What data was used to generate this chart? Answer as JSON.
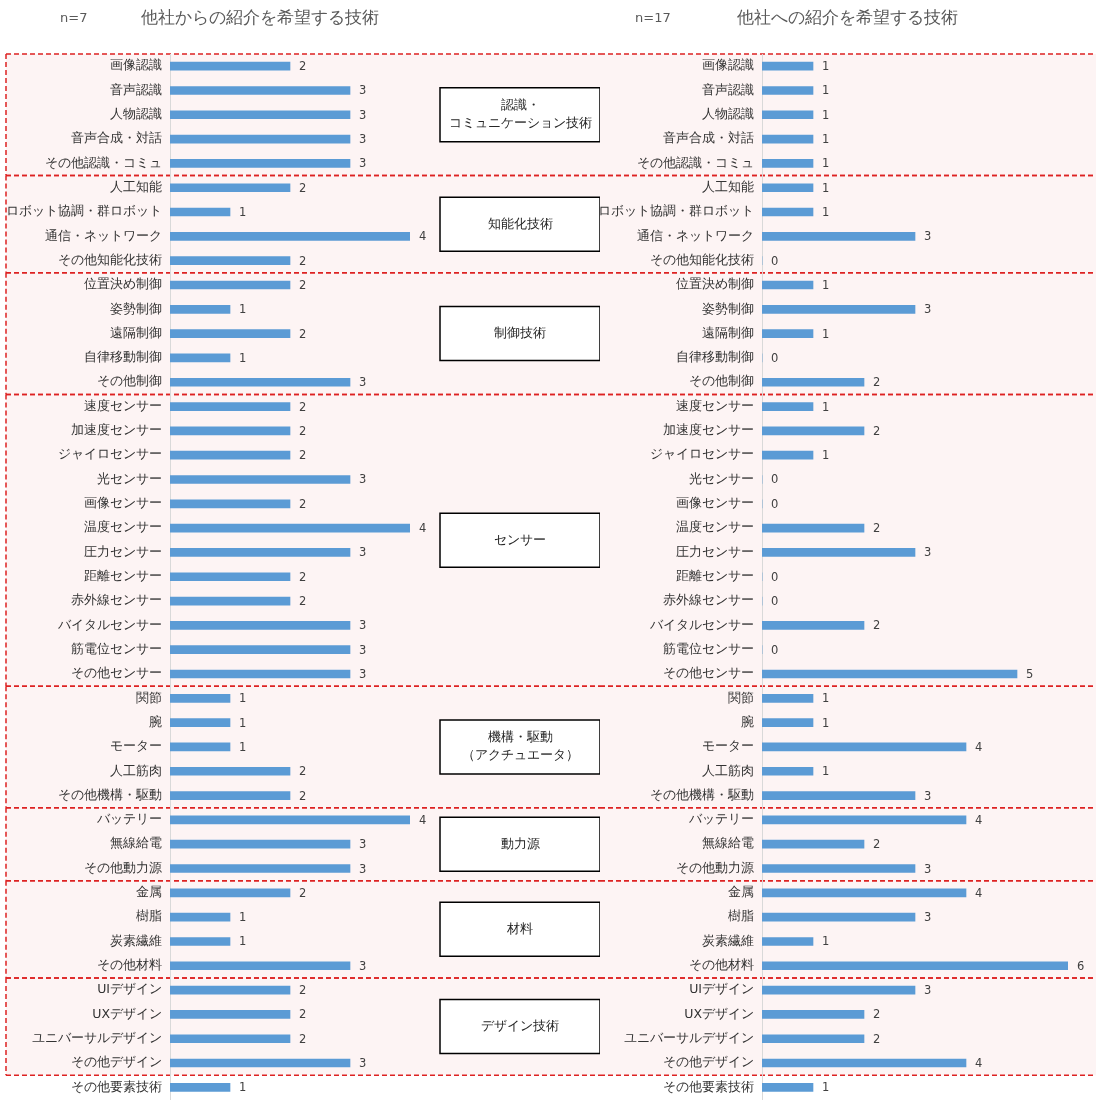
{
  "chart_data": [
    {
      "type": "bar",
      "orientation": "horizontal",
      "title": "他社からの紹介を希望する技術",
      "subtitle": "n=7",
      "categories": [
        "画像認識",
        "音声認識",
        "人物認識",
        "音声合成・対話",
        "その他認識・コミュ",
        "人工知能",
        "ロボット協調・群ロボット",
        "通信・ネットワーク",
        "その他知能化技術",
        "位置決め制御",
        "姿勢制御",
        "遠隔制御",
        "自律移動制御",
        "その他制御",
        "速度センサー",
        "加速度センサー",
        "ジャイロセンサー",
        "光センサー",
        "画像センサー",
        "温度センサー",
        "圧力センサー",
        "距離センサー",
        "赤外線センサー",
        "バイタルセンサー",
        "筋電位センサー",
        "その他センサー",
        "関節",
        "腕",
        "モーター",
        "人工筋肉",
        "その他機構・駆動",
        "バッテリー",
        "無線給電",
        "その他動力源",
        "金属",
        "樹脂",
        "炭素繊維",
        "その他材料",
        "UIデザイン",
        "UXデザイン",
        "ユニバーサルデザイン",
        "その他デザイン",
        "その他要素技術"
      ],
      "values": [
        2,
        3,
        3,
        3,
        3,
        2,
        1,
        4,
        2,
        2,
        1,
        2,
        1,
        3,
        2,
        2,
        2,
        3,
        2,
        4,
        3,
        2,
        2,
        3,
        3,
        3,
        1,
        1,
        1,
        2,
        2,
        4,
        3,
        3,
        2,
        1,
        1,
        3,
        2,
        2,
        2,
        3,
        1
      ],
      "color": "#5b9bd5",
      "data_labels": true,
      "tick_labels": "y",
      "bands": [
        {
          "axis": "y",
          "from": "画像認識",
          "to": "その他認識・コミュ",
          "label": "認識・コミュニケーション技術",
          "color": "#dd2222"
        },
        {
          "axis": "y",
          "from": "人工知能",
          "to": "その他知能化技術",
          "label": "知能化技術",
          "color": "#dd2222"
        },
        {
          "axis": "y",
          "from": "位置決め制御",
          "to": "その他制御",
          "label": "制御技術",
          "color": "#dd2222"
        },
        {
          "axis": "y",
          "from": "速度センサー",
          "to": "その他センサー",
          "label": "センサー",
          "color": "#dd2222"
        },
        {
          "axis": "y",
          "from": "関節",
          "to": "その他機構・駆動",
          "label": "機構・駆動（アクチュエータ）",
          "color": "#dd2222"
        },
        {
          "axis": "y",
          "from": "バッテリー",
          "to": "その他動力源",
          "label": "動力源",
          "color": "#dd2222"
        },
        {
          "axis": "y",
          "from": "金属",
          "to": "その他材料",
          "label": "材料",
          "color": "#dd2222"
        },
        {
          "axis": "y",
          "from": "UIデザイン",
          "to": "その他デザイン",
          "label": "デザイン技術",
          "color": "#dd2222"
        }
      ]
    },
    {
      "type": "bar",
      "orientation": "horizontal",
      "title": "他社への紹介を希望する技術",
      "subtitle": "n=17",
      "categories": [
        "画像認識",
        "音声認識",
        "人物認識",
        "音声合成・対話",
        "その他認識・コミュ",
        "人工知能",
        "ロボット協調・群ロボット",
        "通信・ネットワーク",
        "その他知能化技術",
        "位置決め制御",
        "姿勢制御",
        "遠隔制御",
        "自律移動制御",
        "その他制御",
        "速度センサー",
        "加速度センサー",
        "ジャイロセンサー",
        "光センサー",
        "画像センサー",
        "温度センサー",
        "圧力センサー",
        "距離センサー",
        "赤外線センサー",
        "バイタルセンサー",
        "筋電位センサー",
        "その他センサー",
        "関節",
        "腕",
        "モーター",
        "人工筋肉",
        "その他機構・駆動",
        "バッテリー",
        "無線給電",
        "その他動力源",
        "金属",
        "樹脂",
        "炭素繊維",
        "その他材料",
        "UIデザイン",
        "UXデザイン",
        "ユニバーサルデザイン",
        "その他デザイン",
        "その他要素技術"
      ],
      "values": [
        1,
        1,
        1,
        1,
        1,
        1,
        1,
        3,
        0,
        1,
        3,
        1,
        0,
        2,
        1,
        2,
        1,
        0,
        0,
        2,
        3,
        0,
        0,
        2,
        0,
        5,
        1,
        1,
        4,
        1,
        3,
        4,
        2,
        3,
        4,
        3,
        1,
        6,
        3,
        2,
        2,
        4,
        1
      ],
      "color": "#5b9bd5",
      "data_labels": true,
      "tick_labels": "y",
      "bands": [
        {
          "axis": "y",
          "from": "画像認識",
          "to": "その他認識・コミュ",
          "color": "#dd2222"
        },
        {
          "axis": "y",
          "from": "人工知能",
          "to": "その他知能化技術",
          "color": "#dd2222"
        },
        {
          "axis": "y",
          "from": "位置決め制御",
          "to": "その他制御",
          "color": "#dd2222"
        },
        {
          "axis": "y",
          "from": "速度センサー",
          "to": "その他センサー",
          "color": "#dd2222"
        },
        {
          "axis": "y",
          "from": "関節",
          "to": "その他機構・駆動",
          "color": "#dd2222"
        },
        {
          "axis": "y",
          "from": "バッテリー",
          "to": "その他動力源",
          "color": "#dd2222"
        },
        {
          "axis": "y",
          "from": "金属",
          "to": "その他材料",
          "color": "#dd2222"
        },
        {
          "axis": "y",
          "from": "UIデザイン",
          "to": "その他デザイン",
          "color": "#dd2222"
        }
      ]
    }
  ]
}
